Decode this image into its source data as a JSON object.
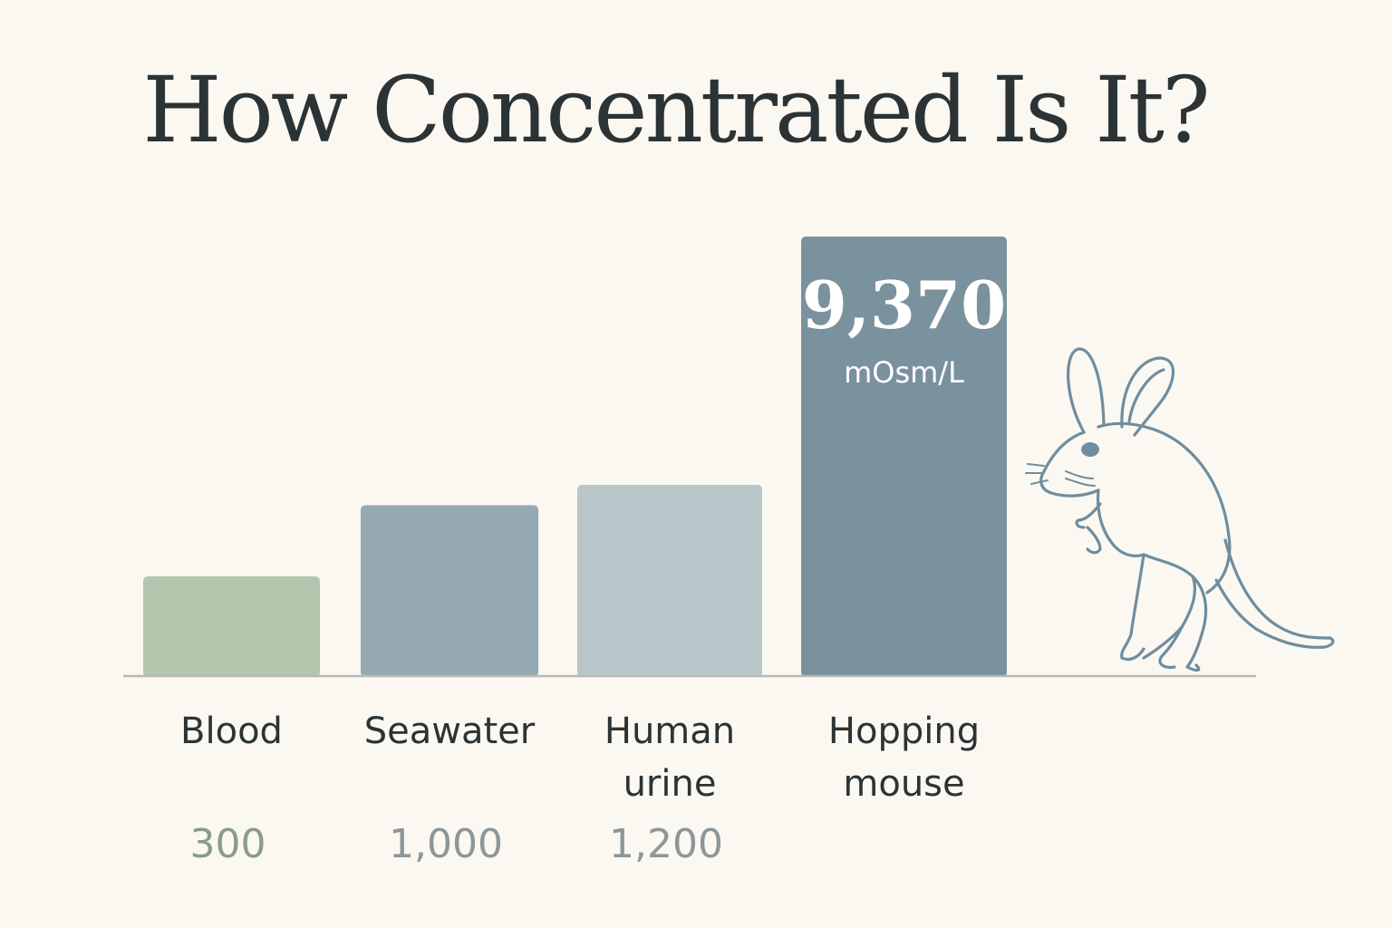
{
  "chart_data": {
    "type": "bar",
    "title": "How Concentrated Is It?",
    "categories": [
      [
        "Blood"
      ],
      [
        "Seawater"
      ],
      [
        "Human",
        "urine"
      ],
      [
        "Hopping",
        "mouse"
      ]
    ],
    "values": [
      300,
      1000,
      1200,
      9370
    ],
    "value_labels": [
      "300",
      "1,000",
      "1,200",
      "9,370"
    ],
    "highlight_index": 3,
    "highlight_unit": "mOsm/L",
    "bar_colors": [
      "#b3c6ae",
      "#94a9b2",
      "#b9c6c9",
      "#7a929e"
    ],
    "value_label_colors": [
      "#8a9c87",
      "#8c9699",
      "#8c9699",
      "#ffffff"
    ],
    "value_scale_note": "bar heights are not to linear scale",
    "decoration": "jerboa-icon"
  }
}
